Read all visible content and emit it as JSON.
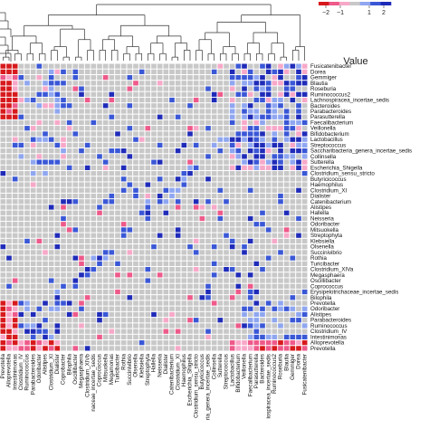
{
  "chart_data": {
    "type": "heatmap",
    "title": "",
    "xlabel": "",
    "ylabel": "",
    "legend": {
      "title": "Value",
      "ticks": [
        -2,
        -1,
        1,
        2
      ],
      "tick_labels": [
        "−2",
        "−1",
        "1",
        "2"
      ],
      "placement": "top-right"
    },
    "color_scale": {
      "min": -2.5,
      "max": 2.5,
      "negative": "#d7191c",
      "negative_light": "#f7a8c8",
      "neutral": "#c8c8c8",
      "positive_light": "#8fa6f0",
      "positive": "#1f2bb8"
    },
    "rows": [
      "Fusicatenibacter",
      "Dorea",
      "Gemmiger",
      "Blautia",
      "Roseburia",
      "Ruminococcus2",
      "Lachnospiracea_incertae_sedis",
      "Bacteroides",
      "Parabacteroides",
      "Parasutterella",
      "Faecalibacterium",
      "Veillonella",
      "Bifidobacterium",
      "Lactobacillus",
      "Streptococcus",
      "Saccharibacteria_genera_incertae_sedis",
      "Collinsella",
      "Sutterella",
      "Escherichia_Shigella",
      "Clostridium_sensu_stricto",
      "Butyricicoccus",
      "Haemophilus",
      "Clostridium_XI",
      "Dialister",
      "Catenibacterium",
      "Alistipes",
      "Hallella",
      "Neisseria",
      "Odoribacter",
      "Mitsuokella",
      "Streptophyta",
      "Klebsiella",
      "Olsenella",
      "Succinivibrio",
      "Rothia",
      "Turicibacter",
      "Clostridium_XIVa",
      "Megasphaera",
      "Oscillibacter",
      "Coprococcus",
      "Erysipelotrichaceae_incertae_sedis",
      "Bilophila",
      "Prevotella",
      "Odoribacter",
      "Alistipes",
      "Parabacteroides",
      "Ruminococcus",
      "Clostridium_IV",
      "Intestinimonas",
      "Alloprevotella",
      "Prevotella"
    ],
    "columns": [
      "Prevotella",
      "Alloprevotella",
      "Intestinimonas",
      "Clostridium_IV",
      "Ruminococcus",
      "Parabacteroides",
      "Odoribacter",
      "Alistipes",
      "Clostridium_XI",
      "Dialister",
      "Coprobacter",
      "Bilophila",
      "Oscillibacter",
      "Megasphaera",
      "Clostridium_XIVb",
      "Erysipelotrichaceae_incertae_sedis",
      "Coprococcus",
      "Mitsuokella",
      "Megamonas",
      "Turicibacter",
      "Rothia",
      "Succinivibrio",
      "Olsenella",
      "Klebsiella",
      "Streptophyta",
      "Hallella",
      "Neisseria",
      "Dialister",
      "Catenibacterium",
      "Clostridium_XI",
      "Haemophilus",
      "Escherichia_Shigella",
      "Clostridium_sensu_stricto",
      "Butyricicoccus",
      "Saccharibacteria_genera_incertae_sedis",
      "Collinsella",
      "Sutterella",
      "Streptococcus",
      "Lactobacillus",
      "Bifidobacterium",
      "Veillonella",
      "Faecalibacterium",
      "Parasutterella",
      "Bacteroides",
      "Lachnospiracea_incertae_sedis",
      "Ruminococcus2",
      "Roseburia",
      "Blautia",
      "Gemmiger",
      "Dorea",
      "Fusicatenibacter"
    ],
    "column_labels_shown": [
      "Prevotella",
      "Alloprevotella",
      "Intestinimonas",
      "Clostridium_IV",
      "Ruminococcus",
      "Parabacteroides",
      "Odoribacter",
      "Alistipes",
      "Clostridium_XI",
      "Dialister",
      "Coprobacter",
      "Bilophila",
      "Oscillibacter",
      "Megasphaera",
      "Clostridium_XIVb",
      "naceae_incertae_sedis",
      "Coprococcus",
      "Mitsuokella",
      "Megamonas",
      "Turicibacter",
      "Rothia",
      "Succinivibrio",
      "Olsenella",
      "Klebsiella",
      "Streptophyta",
      "Hallella",
      "Neisseria",
      "Dialister",
      "Catenibacterium",
      "Clostridium_XI",
      "Haemophilus",
      "Escherichia_Shigella",
      "Clostridium_sensu_stricto",
      "Butyricicoccus",
      "ria_genera_incertae_sedis",
      "Collinsella",
      "Sutterella",
      "Streptococcus",
      "Lactobacillus",
      "Bifidobacterium",
      "Veillonella",
      "Faecalibacterium",
      "Parasutterella",
      "Bacteroides",
      "iospiracea_incertae_sedis",
      "Ruminococcus2",
      "Roseburia",
      "Blautia",
      "Gemmiger",
      "Dorea",
      "Fusicatenibacter"
    ],
    "column_clustering": "dendrogram-top",
    "row_clustering": "dendrogram-left",
    "grid": true
  }
}
